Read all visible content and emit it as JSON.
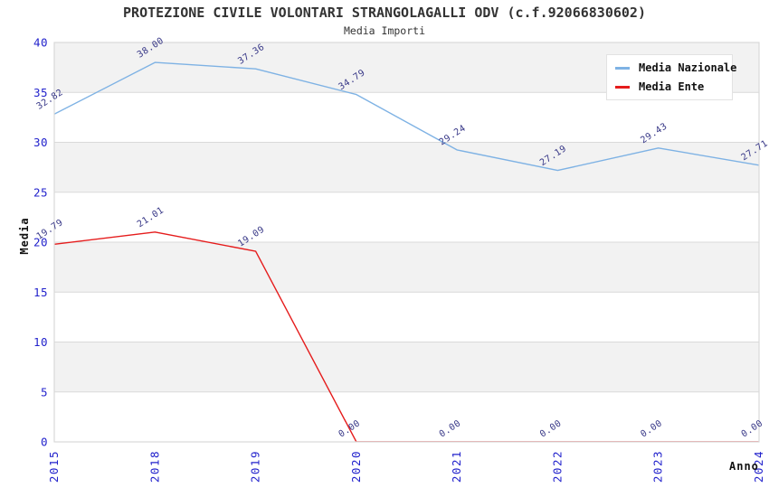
{
  "header": {
    "title": "PROTEZIONE CIVILE VOLONTARI STRANGOLAGALLI ODV (c.f.92066830602)",
    "subtitle": "Media Importi"
  },
  "chart_data": {
    "type": "line",
    "title": "PROTEZIONE CIVILE VOLONTARI STRANGOLAGALLI ODV (c.f.92066830602)",
    "subtitle": "Media Importi",
    "xlabel": "Anno",
    "ylabel": "Media",
    "categories": [
      "2015",
      "2018",
      "2019",
      "2020",
      "2021",
      "2022",
      "2023",
      "2024"
    ],
    "series": [
      {
        "name": "Media Nazionale",
        "color": "#7EB2E4",
        "values": [
          32.82,
          38.0,
          37.36,
          34.79,
          29.24,
          27.19,
          29.43,
          27.71
        ]
      },
      {
        "name": "Media Ente",
        "color": "#E51C1C",
        "values": [
          19.79,
          21.01,
          19.09,
          0.0,
          0.0,
          0.0,
          0.0,
          0.0
        ]
      }
    ],
    "ylim": [
      0,
      40
    ],
    "yticks": [
      0,
      5,
      10,
      15,
      20,
      25,
      30,
      35,
      40
    ],
    "grid": true,
    "band_color": "#F2F2F2",
    "grid_color": "#D9D9D9",
    "tick_label_color": "#2222CC",
    "value_label_color": "#373787",
    "legend_position": "top-right",
    "value_label_decimals": 2
  }
}
